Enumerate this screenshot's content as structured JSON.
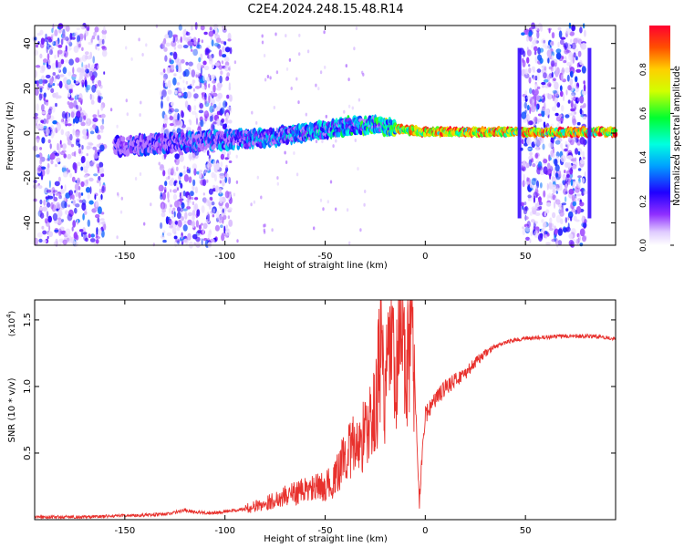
{
  "title": "C2E4.2024.248.15.48.R14",
  "chart_data": [
    {
      "type": "heatmap",
      "xlabel": "Height of straight line (km)",
      "ylabel": "Frequency (Hz)",
      "xlim": [
        -195,
        95
      ],
      "ylim": [
        -50,
        48
      ],
      "xticks": [
        -150,
        -100,
        -50,
        0,
        50
      ],
      "yticks": [
        -40,
        -20,
        0,
        20,
        40
      ],
      "colorbar": {
        "label": "Normalized spectral amplitude",
        "range": [
          0,
          1
        ],
        "ticks": [
          "0.0",
          "0.2",
          "0.4",
          "0.6",
          "0.8"
        ],
        "colormap": "rainbow (violet to red)"
      },
      "noise_regions_km": [
        [
          -195,
          -160
        ],
        [
          -132,
          -97
        ],
        [
          48,
          80
        ]
      ],
      "ridge": {
        "x": [
          -155,
          -140,
          -120,
          -100,
          -80,
          -60,
          -40,
          -25,
          -15,
          0,
          20,
          40,
          47,
          82,
          95
        ],
        "center_hz": [
          -6,
          -5,
          -4,
          -3,
          -2,
          0,
          3,
          4,
          2,
          0.5,
          0.5,
          0.5,
          0.5,
          0.5,
          0.5
        ],
        "amplitude": [
          0.25,
          0.3,
          0.35,
          0.4,
          0.45,
          0.5,
          0.55,
          0.6,
          0.8,
          1.0,
          1.0,
          1.0,
          1.0,
          1.0,
          1.0
        ]
      },
      "vertical_lines_km": [
        47,
        82
      ]
    },
    {
      "type": "line",
      "xlabel": "Height of straight line (km)",
      "ylabel": "SNR (10 * v/v)",
      "multiplier": "(x10^4)",
      "multiplier_base": "(x10",
      "multiplier_exp": "4",
      "multiplier_close": ")",
      "xlim": [
        -195,
        95
      ],
      "ylim": [
        0,
        1.65
      ],
      "xticks": [
        -150,
        -100,
        -50,
        0,
        50
      ],
      "yticks": [
        "0.5",
        "1.0",
        "1.5"
      ],
      "line_color": "#e8312d",
      "series": [
        {
          "x": [
            -195,
            -170,
            -150,
            -130,
            -120,
            -110,
            -100,
            -90,
            -80,
            -70,
            -60,
            -50,
            -45,
            -40,
            -35,
            -30,
            -25,
            -22,
            -20,
            -17,
            -15,
            -12,
            -10,
            -7,
            -5,
            -3,
            0,
            5,
            10,
            15,
            20,
            25,
            30,
            35,
            40,
            45,
            50,
            60,
            70,
            80,
            90,
            95
          ],
          "values": [
            0.02,
            0.02,
            0.03,
            0.04,
            0.07,
            0.05,
            0.06,
            0.08,
            0.12,
            0.18,
            0.22,
            0.25,
            0.3,
            0.5,
            0.55,
            0.65,
            0.8,
            1.3,
            0.9,
            1.4,
            0.9,
            1.55,
            1.0,
            1.62,
            0.9,
            0.15,
            0.8,
            0.9,
            1.0,
            1.05,
            1.1,
            1.18,
            1.25,
            1.3,
            1.33,
            1.35,
            1.36,
            1.37,
            1.38,
            1.38,
            1.37,
            1.36
          ]
        }
      ]
    }
  ]
}
